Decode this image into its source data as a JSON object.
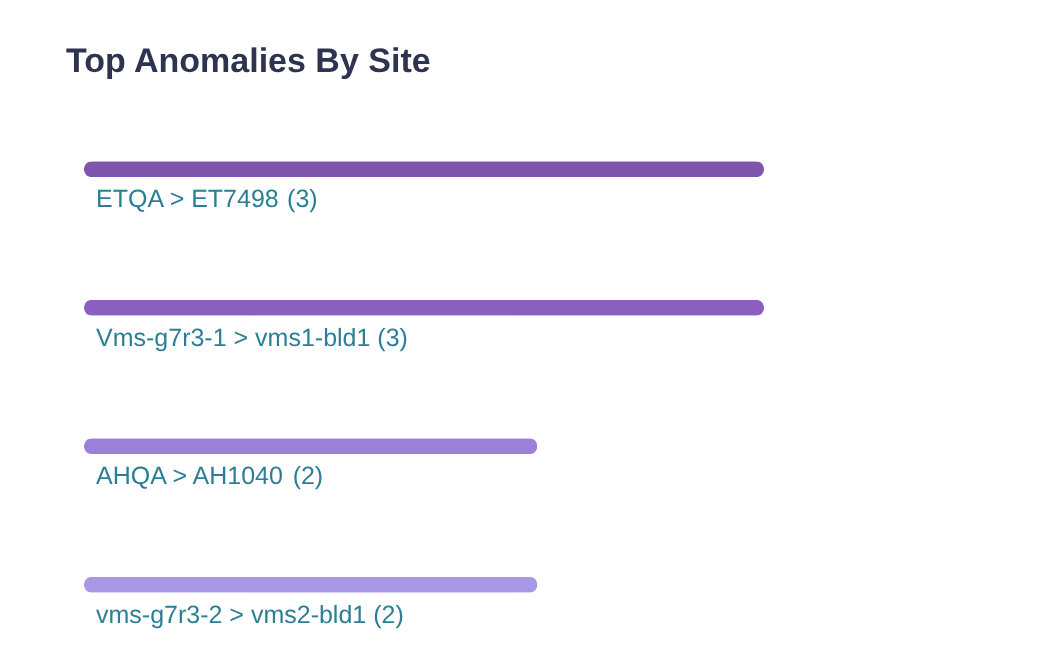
{
  "chart_data": {
    "type": "bar",
    "orientation": "horizontal",
    "title": "Top Anomalies By Site",
    "categories": [
      "ETQA > ET7498",
      "Vms-g7r3-1 > vms1-bld1",
      "AHQA > AH1040",
      "vms-g7r3-2 > vms2-bld1"
    ],
    "values": [
      3,
      3,
      2,
      2
    ],
    "value_labels": [
      "(3)",
      "(3)",
      "(2)",
      "(2)"
    ],
    "colors": [
      "#7d55ad",
      "#8a5fbf",
      "#9b80db",
      "#a898e3"
    ],
    "tick_labels": false,
    "legend": false
  }
}
